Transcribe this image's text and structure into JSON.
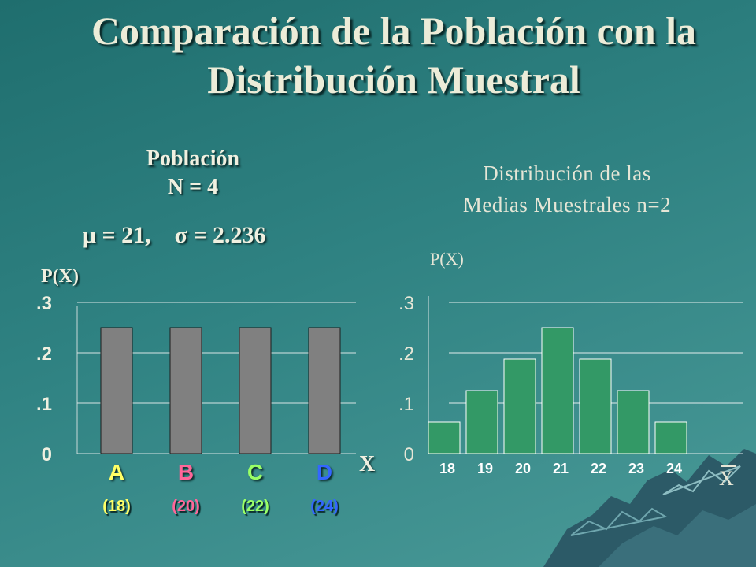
{
  "title": {
    "line1": "Comparación de la Población con la",
    "line2": "Distribución Muestral"
  },
  "population": {
    "label": "Población",
    "n_text": "N = 4",
    "mu_symbol": "μ",
    "mu_text": " = 21,",
    "sigma_symbol": "σ",
    "sigma_text": " = 2.236"
  },
  "sampling": {
    "title_line1": "Distribución de las",
    "title_line2": "Medias Muestrales n=2"
  },
  "chart_data": [
    {
      "type": "bar",
      "title": "",
      "ylabel": "P(X)",
      "xlabel": "X",
      "ylim": [
        0,
        0.3
      ],
      "yticks": [
        "0",
        ".1",
        ".2",
        ".3"
      ],
      "categories": [
        "A",
        "B",
        "C",
        "D"
      ],
      "category_values": [
        "(18)",
        "(20)",
        "(22)",
        "(24)"
      ],
      "category_colors": [
        "#ffff66",
        "#ff6699",
        "#99ff66",
        "#3366ff"
      ],
      "values": [
        0.25,
        0.25,
        0.25,
        0.25
      ],
      "bar_color": "#808080",
      "grid": true
    },
    {
      "type": "bar",
      "title": "",
      "ylabel": "P(X)",
      "xlabel": "X",
      "ylim": [
        0,
        0.3
      ],
      "yticks": [
        "0",
        ".1",
        ".2",
        ".3"
      ],
      "categories": [
        "18",
        "19",
        "20",
        "21",
        "22",
        "23",
        "24"
      ],
      "values": [
        0.0625,
        0.125,
        0.1875,
        0.25,
        0.1875,
        0.125,
        0.0625
      ],
      "bar_color": "#339966",
      "grid": true
    }
  ]
}
